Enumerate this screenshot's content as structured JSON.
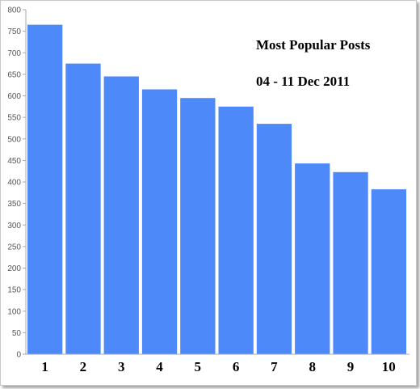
{
  "chart_data": {
    "type": "bar",
    "title": "Most Popular Posts",
    "subtitle": "04 - 11 Dec 2011",
    "xlabel": "",
    "ylabel": "",
    "categories": [
      "1",
      "2",
      "3",
      "4",
      "5",
      "6",
      "7",
      "8",
      "9",
      "10"
    ],
    "values": [
      765,
      675,
      645,
      615,
      595,
      575,
      535,
      443,
      423,
      383
    ],
    "ylim": [
      0,
      800
    ],
    "yticks": [
      0,
      50,
      100,
      150,
      200,
      250,
      300,
      350,
      400,
      450,
      500,
      550,
      600,
      650,
      700,
      750,
      800
    ],
    "grid": false,
    "bar_color": "#4d89f9",
    "axis_color": "#aaaaaa"
  }
}
